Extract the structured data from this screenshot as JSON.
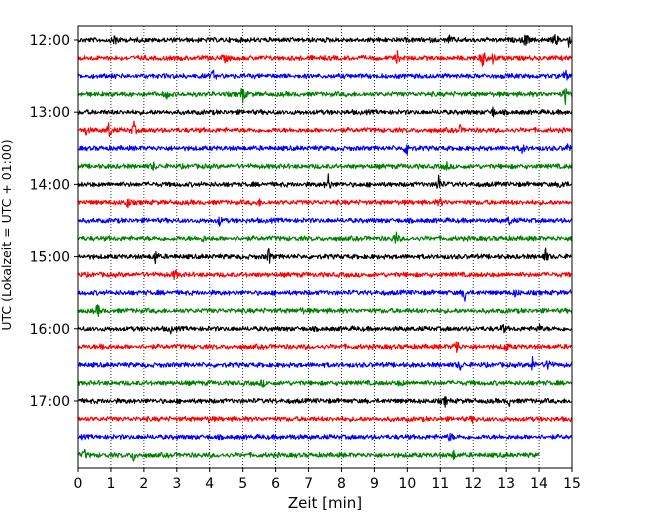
{
  "chart_data": {
    "type": "line",
    "title": "",
    "xlabel": "Zeit  [min]",
    "ylabel": "UTC (Lokalzeit = UTC + 01:00)",
    "xlim": [
      0,
      15
    ],
    "x_ticks": [
      "0",
      "1",
      "2",
      "3",
      "4",
      "5",
      "6",
      "7",
      "8",
      "9",
      "10",
      "11",
      "12",
      "13",
      "14",
      "15"
    ],
    "y_tick_labels": [
      "12:00",
      "13:00",
      "14:00",
      "15:00",
      "16:00",
      "17:00"
    ],
    "grid": "vertical dotted at each minute",
    "colors_cycle": [
      "#000000",
      "#ff0000",
      "#0000ff",
      "#008000"
    ],
    "traces": [
      {
        "start": "12:00",
        "color": "#000000",
        "events": [
          [
            1.15,
            1.0
          ],
          [
            11.3,
            0.5
          ],
          [
            13.6,
            1.0
          ],
          [
            14.5,
            0.8
          ],
          [
            14.9,
            0.6
          ]
        ]
      },
      {
        "start": "12:15",
        "color": "#ff0000",
        "events": [
          [
            4.5,
            0.5
          ],
          [
            9.7,
            0.6
          ],
          [
            12.3,
            1.2
          ],
          [
            12.6,
            0.6
          ]
        ]
      },
      {
        "start": "12:30",
        "color": "#0000ff",
        "events": [
          [
            4.1,
            0.6
          ],
          [
            14.8,
            0.6
          ]
        ]
      },
      {
        "start": "12:45",
        "color": "#008000",
        "events": [
          [
            2.7,
            0.4
          ],
          [
            5.0,
            1.1
          ],
          [
            14.8,
            1.0
          ]
        ]
      },
      {
        "start": "13:00",
        "color": "#000000",
        "events": [
          [
            12.6,
            0.5
          ]
        ]
      },
      {
        "start": "13:15",
        "color": "#ff0000",
        "events": [
          [
            0.25,
            0.5
          ],
          [
            0.95,
            1.0
          ],
          [
            1.7,
            0.8
          ],
          [
            11.6,
            0.4
          ]
        ]
      },
      {
        "start": "13:30",
        "color": "#0000ff",
        "events": [
          [
            10.0,
            1.1
          ],
          [
            13.5,
            0.6
          ],
          [
            14.9,
            0.6
          ]
        ]
      },
      {
        "start": "13:45",
        "color": "#008000",
        "events": [
          [
            2.3,
            0.4
          ],
          [
            11.2,
            0.4
          ]
        ]
      },
      {
        "start": "14:00",
        "color": "#000000",
        "events": [
          [
            7.6,
            1.1
          ],
          [
            10.95,
            1.2
          ],
          [
            14.7,
            0.7
          ]
        ]
      },
      {
        "start": "14:15",
        "color": "#ff0000",
        "events": [
          [
            1.5,
            0.7
          ],
          [
            5.5,
            0.3
          ],
          [
            11.0,
            0.4
          ]
        ]
      },
      {
        "start": "14:30",
        "color": "#0000ff",
        "events": [
          [
            4.3,
            0.5
          ],
          [
            13.1,
            0.5
          ]
        ]
      },
      {
        "start": "14:45",
        "color": "#008000",
        "events": [
          [
            9.65,
            0.8
          ],
          [
            3.8,
            0.3
          ]
        ]
      },
      {
        "start": "15:00",
        "color": "#000000",
        "events": [
          [
            2.35,
            0.8
          ],
          [
            5.8,
            1.0
          ],
          [
            14.2,
            0.8
          ]
        ]
      },
      {
        "start": "15:15",
        "color": "#ff0000",
        "events": [
          [
            2.95,
            0.6
          ]
        ]
      },
      {
        "start": "15:30",
        "color": "#0000ff",
        "events": [
          [
            11.75,
            0.9
          ],
          [
            13.3,
            0.5
          ]
        ]
      },
      {
        "start": "15:45",
        "color": "#008000",
        "events": [
          [
            0.6,
            0.7
          ],
          [
            6.8,
            0.3
          ]
        ]
      },
      {
        "start": "16:00",
        "color": "#000000",
        "events": [
          [
            2.8,
            0.4
          ],
          [
            12.9,
            0.5
          ],
          [
            14.0,
            0.5
          ]
        ]
      },
      {
        "start": "16:15",
        "color": "#ff0000",
        "events": [
          [
            0.75,
            0.5
          ],
          [
            11.5,
            1.1
          ],
          [
            13.0,
            0.5
          ]
        ]
      },
      {
        "start": "16:30",
        "color": "#0000ff",
        "events": [
          [
            11.6,
            0.6
          ],
          [
            13.8,
            0.8
          ],
          [
            14.3,
            1.0
          ]
        ]
      },
      {
        "start": "16:45",
        "color": "#008000",
        "events": [
          [
            5.6,
            0.4
          ],
          [
            9.8,
            0.3
          ]
        ]
      },
      {
        "start": "17:00",
        "color": "#000000",
        "events": [
          [
            11.15,
            0.5
          ],
          [
            13.1,
            0.4
          ]
        ]
      },
      {
        "start": "17:15",
        "color": "#ff0000",
        "events": [
          [
            4.0,
            0.3
          ],
          [
            12.0,
            0.3
          ]
        ]
      },
      {
        "start": "17:30",
        "color": "#0000ff",
        "events": [
          [
            11.3,
            0.5
          ],
          [
            6.5,
            0.3
          ]
        ]
      },
      {
        "start": "17:45",
        "color": "#008000",
        "events": [
          [
            0.2,
            0.5
          ],
          [
            1.7,
            0.7
          ],
          [
            11.4,
            0.5
          ]
        ],
        "end": 14.0
      }
    ]
  }
}
